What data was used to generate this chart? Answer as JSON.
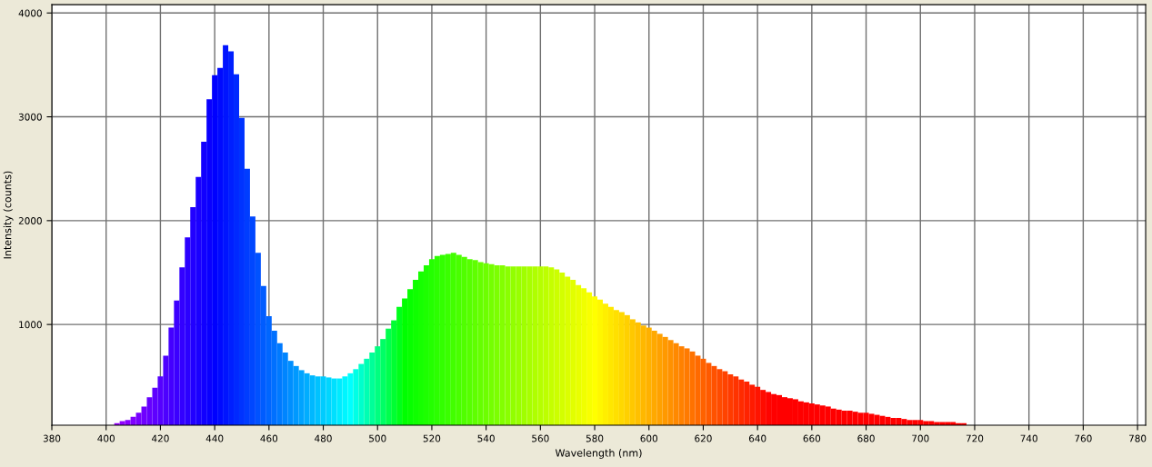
{
  "chart_data": {
    "type": "bar",
    "xlabel": "Wavelength (nm)",
    "ylabel": "Intensity (counts)",
    "x": [
      404,
      406,
      408,
      410,
      412,
      414,
      416,
      418,
      420,
      422,
      424,
      426,
      428,
      430,
      432,
      434,
      436,
      438,
      440,
      442,
      444,
      446,
      448,
      450,
      452,
      454,
      456,
      458,
      460,
      462,
      464,
      466,
      468,
      470,
      472,
      474,
      476,
      478,
      480,
      482,
      484,
      486,
      488,
      490,
      492,
      494,
      496,
      498,
      500,
      502,
      504,
      506,
      508,
      510,
      512,
      514,
      516,
      518,
      520,
      522,
      524,
      526,
      528,
      530,
      532,
      534,
      536,
      538,
      540,
      542,
      544,
      546,
      548,
      550,
      552,
      554,
      556,
      558,
      560,
      562,
      564,
      566,
      568,
      570,
      572,
      574,
      576,
      578,
      580,
      582,
      584,
      586,
      588,
      590,
      592,
      594,
      596,
      598,
      600,
      602,
      604,
      606,
      608,
      610,
      612,
      614,
      616,
      618,
      620,
      622,
      624,
      626,
      628,
      630,
      632,
      634,
      636,
      638,
      640,
      642,
      644,
      646,
      648,
      650,
      652,
      654,
      656,
      658,
      660,
      662,
      664,
      666,
      668,
      670,
      672,
      674,
      676,
      678,
      680,
      682,
      684,
      686,
      688,
      690,
      692,
      694,
      696,
      698,
      700,
      702,
      704,
      706,
      708,
      710,
      712,
      714,
      716
    ],
    "values": [
      50,
      70,
      80,
      110,
      150,
      210,
      300,
      390,
      500,
      700,
      970,
      1230,
      1550,
      1840,
      2130,
      2420,
      2760,
      3170,
      3400,
      3470,
      3690,
      3630,
      3410,
      2990,
      2500,
      2040,
      1690,
      1370,
      1080,
      940,
      820,
      730,
      650,
      600,
      560,
      530,
      510,
      500,
      500,
      490,
      480,
      480,
      500,
      530,
      570,
      620,
      670,
      730,
      790,
      860,
      960,
      1040,
      1170,
      1250,
      1340,
      1430,
      1510,
      1570,
      1630,
      1660,
      1670,
      1680,
      1690,
      1670,
      1650,
      1630,
      1620,
      1600,
      1590,
      1580,
      1570,
      1570,
      1560,
      1560,
      1560,
      1560,
      1560,
      1560,
      1560,
      1560,
      1550,
      1530,
      1500,
      1460,
      1430,
      1380,
      1350,
      1310,
      1270,
      1240,
      1200,
      1170,
      1140,
      1120,
      1090,
      1050,
      1020,
      990,
      970,
      940,
      910,
      880,
      850,
      820,
      790,
      770,
      740,
      700,
      670,
      630,
      600,
      570,
      550,
      520,
      500,
      470,
      450,
      420,
      400,
      370,
      350,
      330,
      320,
      300,
      290,
      280,
      260,
      250,
      240,
      230,
      220,
      210,
      190,
      180,
      170,
      170,
      160,
      150,
      150,
      140,
      130,
      120,
      110,
      100,
      100,
      90,
      80,
      80,
      80,
      70,
      70,
      60,
      60,
      60,
      60,
      50,
      50
    ],
    "colors": [
      "#9900ff",
      "#9100ff",
      "#8800ff",
      "#8000ff",
      "#7700ff",
      "#6f00ff",
      "#6600ff",
      "#5e00ff",
      "#5500ff",
      "#4d00ff",
      "#4400ff",
      "#3c00ff",
      "#3300ff",
      "#2b00ff",
      "#2200ff",
      "#1a00ff",
      "#1100ff",
      "#0900ff",
      "#0000ff",
      "#000aff",
      "#0014ff",
      "#001fff",
      "#0029ff",
      "#0033ff",
      "#003dff",
      "#0047ff",
      "#0052ff",
      "#005cff",
      "#0066ff",
      "#0070ff",
      "#007aff",
      "#0085ff",
      "#008fff",
      "#0099ff",
      "#00a3ff",
      "#00adff",
      "#00b8ff",
      "#00c2ff",
      "#00ccff",
      "#00d6ff",
      "#00e0ff",
      "#00ebff",
      "#00f5ff",
      "#00ffff",
      "#00ffe6",
      "#00ffcc",
      "#00ffb3",
      "#00ff99",
      "#00ff80",
      "#00ff66",
      "#00ff4d",
      "#00ff33",
      "#00ff1a",
      "#00ff00",
      "#07ff00",
      "#0fff00",
      "#16ff00",
      "#1dff00",
      "#24ff00",
      "#2cff00",
      "#33ff00",
      "#3aff00",
      "#42ff00",
      "#49ff00",
      "#50ff00",
      "#57ff00",
      "#5fff00",
      "#66ff00",
      "#6dff00",
      "#75ff00",
      "#7cff00",
      "#83ff00",
      "#8aff00",
      "#92ff00",
      "#99ff00",
      "#a0ff00",
      "#a8ff00",
      "#afff00",
      "#b6ff00",
      "#bdff00",
      "#c5ff00",
      "#ccff00",
      "#d3ff00",
      "#dbff00",
      "#e2ff00",
      "#e9ff00",
      "#f0ff00",
      "#f8ff00",
      "#ffff00",
      "#fff700",
      "#ffef00",
      "#ffe700",
      "#ffe000",
      "#ffd800",
      "#ffd000",
      "#ffc800",
      "#ffc000",
      "#ffb800",
      "#ffb100",
      "#ffa900",
      "#ffa100",
      "#ff9900",
      "#ff9100",
      "#ff8900",
      "#ff8100",
      "#ff7a00",
      "#ff7200",
      "#ff6a00",
      "#ff6200",
      "#ff5a00",
      "#ff5200",
      "#ff4b00",
      "#ff4300",
      "#ff3b00",
      "#ff3300",
      "#ff2b00",
      "#ff2300",
      "#ff1b00",
      "#ff1400",
      "#ff0c00",
      "#ff0400",
      "#ff0000",
      "#ff0000",
      "#ff0000",
      "#ff0000",
      "#ff0000",
      "#ff0000",
      "#ff0000",
      "#ff0000",
      "#ff0000",
      "#ff0000",
      "#ff0000",
      "#ff0000",
      "#ff0000",
      "#ff0000",
      "#ff0000",
      "#ff0000",
      "#ff0000",
      "#ff0000",
      "#ff0000",
      "#ff0000",
      "#ff0000",
      "#ff0000",
      "#ff0000",
      "#ff0000",
      "#ff0000",
      "#ff0000",
      "#ff0000",
      "#ff0000",
      "#ff0000",
      "#ff0000",
      "#ff0000",
      "#ff0000",
      "#ff0000",
      "#ff0000",
      "#ff0000",
      "#ff0000"
    ],
    "xlim": [
      380,
      783
    ],
    "ylim": [
      30,
      4080
    ],
    "xticks": [
      380,
      400,
      420,
      440,
      460,
      480,
      500,
      520,
      540,
      560,
      580,
      600,
      620,
      640,
      660,
      680,
      700,
      720,
      740,
      760,
      780
    ],
    "yticks": [
      1000,
      2000,
      3000,
      4000
    ],
    "grid": true
  }
}
